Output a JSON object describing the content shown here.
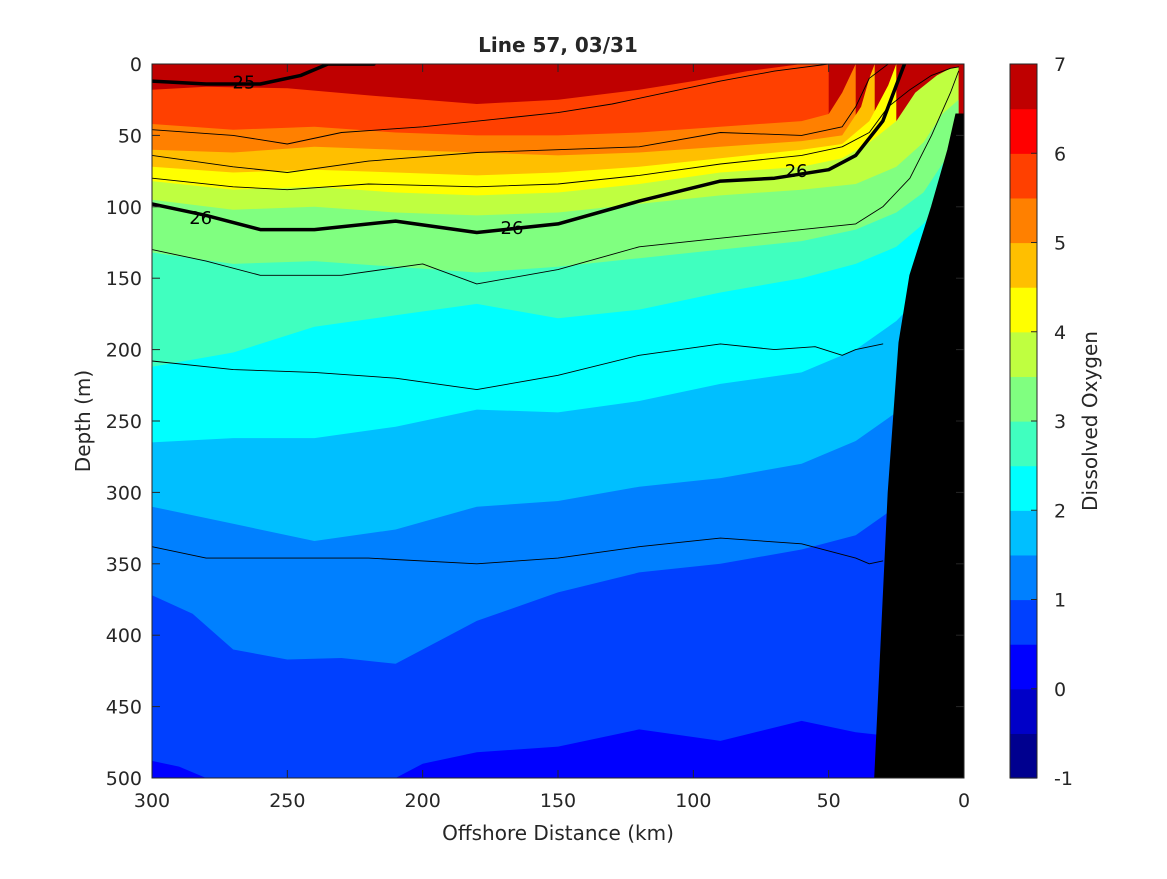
{
  "chart_data": {
    "type": "contour",
    "title": "Line 57, 03/31",
    "xlabel": "Offshore Distance (km)",
    "ylabel": "Depth (m)",
    "xlim": [
      300,
      0
    ],
    "ylim": [
      500,
      0
    ],
    "x_reversed": true,
    "y_reversed": true,
    "xticks": [
      300,
      250,
      200,
      150,
      100,
      50,
      0
    ],
    "yticks": [
      0,
      50,
      100,
      150,
      200,
      250,
      300,
      350,
      400,
      450,
      500
    ],
    "colorbar": {
      "label": "Dissolved Oxygen",
      "range": [
        -1,
        7
      ],
      "ticks": [
        -1,
        0,
        1,
        2,
        3,
        4,
        5,
        6,
        7
      ],
      "levels": [
        -1,
        -0.5,
        0,
        0.5,
        1,
        1.5,
        2,
        2.5,
        3,
        3.5,
        4,
        4.5,
        5,
        5.5,
        6,
        6.5,
        7
      ],
      "colors": [
        "#00008f",
        "#0000c8",
        "#0000ff",
        "#0040ff",
        "#0080ff",
        "#00bfff",
        "#00ffff",
        "#40ffbf",
        "#80ff80",
        "#bfff40",
        "#ffff00",
        "#ffbf00",
        "#ff8000",
        "#ff4000",
        "#ff0000",
        "#bf0000"
      ]
    },
    "oxygen_boundaries": [
      {
        "level": 6.0,
        "x": [
          300,
          280,
          250,
          220,
          180,
          150,
          120,
          100,
          80,
          60,
          50
        ],
        "y": [
          18,
          16,
          17,
          22,
          28,
          25,
          18,
          12,
          5,
          0,
          0
        ]
      },
      {
        "level": 5.5,
        "x": [
          300,
          270,
          240,
          210,
          180,
          150,
          120,
          90,
          60,
          50,
          45,
          40
        ],
        "y": [
          42,
          46,
          44,
          48,
          50,
          50,
          48,
          44,
          40,
          35,
          20,
          0
        ]
      },
      {
        "level": 5.0,
        "x": [
          300,
          270,
          240,
          210,
          180,
          150,
          120,
          90,
          60,
          45,
          38,
          35,
          33
        ],
        "y": [
          60,
          62,
          58,
          60,
          62,
          64,
          62,
          58,
          54,
          50,
          30,
          10,
          0
        ]
      },
      {
        "level": 4.5,
        "x": [
          300,
          270,
          240,
          210,
          180,
          150,
          120,
          90,
          60,
          45,
          35,
          28,
          25
        ],
        "y": [
          72,
          76,
          74,
          76,
          78,
          76,
          72,
          66,
          60,
          56,
          40,
          15,
          0
        ]
      },
      {
        "level": 4.0,
        "x": [
          300,
          270,
          240,
          210,
          180,
          150,
          120,
          90,
          60,
          45,
          35,
          25,
          18,
          10,
          5,
          2
        ],
        "y": [
          82,
          88,
          86,
          90,
          92,
          90,
          84,
          76,
          72,
          66,
          55,
          40,
          20,
          8,
          3,
          2
        ]
      },
      {
        "level": 3.5,
        "x": [
          300,
          270,
          240,
          210,
          180,
          150,
          120,
          90,
          60,
          40,
          25,
          15,
          8,
          2
        ],
        "y": [
          95,
          102,
          100,
          104,
          106,
          104,
          98,
          92,
          88,
          84,
          72,
          55,
          35,
          25
        ]
      },
      {
        "level": 3.0,
        "x": [
          300,
          270,
          240,
          210,
          180,
          150,
          120,
          90,
          60,
          40,
          25,
          15,
          8,
          2
        ],
        "y": [
          132,
          140,
          138,
          142,
          146,
          142,
          136,
          130,
          124,
          116,
          104,
          90,
          70,
          55
        ]
      },
      {
        "level": 2.5,
        "x": [
          300,
          270,
          240,
          210,
          180,
          150,
          120,
          90,
          60,
          40,
          25,
          15,
          8,
          2
        ],
        "y": [
          212,
          202,
          184,
          176,
          168,
          178,
          172,
          160,
          150,
          140,
          128,
          112,
          95,
          80
        ]
      },
      {
        "level": 2.0,
        "x": [
          300,
          270,
          240,
          210,
          180,
          150,
          120,
          90,
          60,
          40,
          25,
          15,
          8,
          2
        ],
        "y": [
          265,
          262,
          262,
          254,
          242,
          244,
          236,
          224,
          216,
          200,
          180,
          160,
          140,
          120
        ]
      },
      {
        "level": 1.5,
        "x": [
          300,
          270,
          240,
          210,
          180,
          150,
          120,
          90,
          60,
          40,
          25,
          15,
          8,
          2
        ],
        "y": [
          310,
          322,
          334,
          326,
          310,
          306,
          296,
          290,
          280,
          264,
          244,
          220,
          190,
          160
        ]
      },
      {
        "level": 1.0,
        "x": [
          300,
          285,
          270,
          250,
          230,
          210,
          180,
          150,
          120,
          90,
          60,
          40,
          25,
          15,
          8,
          2
        ],
        "y": [
          372,
          385,
          410,
          417,
          416,
          420,
          390,
          370,
          356,
          350,
          340,
          330,
          310,
          290,
          260,
          230
        ]
      },
      {
        "level": 0.5,
        "x": [
          300,
          290,
          280,
          210,
          200,
          180,
          150,
          120,
          90,
          60,
          40,
          30,
          20,
          10,
          5,
          2
        ],
        "y": [
          488,
          492,
          500,
          500,
          490,
          482,
          478,
          466,
          474,
          460,
          468,
          470,
          460,
          430,
          400,
          370
        ]
      }
    ],
    "sigma_contours": [
      {
        "label": "",
        "bold": false,
        "x": [
          300,
          270,
          250,
          230,
          200,
          170,
          150,
          130,
          110,
          90,
          70,
          50,
          35,
          28
        ],
        "y": [
          46,
          50,
          56,
          48,
          44,
          38,
          34,
          28,
          20,
          12,
          5,
          0,
          0,
          0
        ]
      },
      {
        "label": "",
        "bold": false,
        "x": [
          300,
          270,
          250,
          220,
          180,
          150,
          120,
          90,
          60,
          45,
          40,
          35,
          28
        ],
        "y": [
          64,
          72,
          76,
          68,
          62,
          60,
          58,
          48,
          50,
          44,
          30,
          10,
          0
        ]
      },
      {
        "label": "",
        "bold": false,
        "x": [
          300,
          270,
          250,
          220,
          180,
          150,
          120,
          90,
          60,
          45,
          35,
          28,
          20,
          12,
          5,
          2
        ],
        "y": [
          80,
          86,
          88,
          84,
          86,
          84,
          78,
          70,
          64,
          58,
          48,
          30,
          18,
          8,
          3,
          2
        ]
      },
      {
        "label": "26",
        "bold": true,
        "x": [
          300,
          280,
          260,
          240,
          210,
          180,
          150,
          120,
          90,
          70,
          50,
          40,
          30,
          25,
          22
        ],
        "y": [
          98,
          106,
          116,
          116,
          110,
          118,
          112,
          96,
          82,
          80,
          74,
          64,
          40,
          15,
          0
        ]
      },
      {
        "label": "",
        "bold": false,
        "x": [
          300,
          280,
          260,
          230,
          200,
          180,
          150,
          120,
          90,
          60,
          40,
          30,
          20,
          12,
          5,
          2
        ],
        "y": [
          130,
          138,
          148,
          148,
          140,
          154,
          144,
          128,
          122,
          116,
          112,
          100,
          80,
          50,
          20,
          5
        ]
      },
      {
        "label": "",
        "bold": false,
        "x": [
          300,
          270,
          240,
          210,
          180,
          150,
          120,
          90,
          70,
          55,
          45,
          40,
          30
        ],
        "y": [
          208,
          214,
          216,
          220,
          228,
          218,
          204,
          196,
          200,
          198,
          204,
          200,
          196
        ]
      },
      {
        "label": "",
        "bold": false,
        "x": [
          300,
          280,
          250,
          220,
          180,
          150,
          120,
          90,
          60,
          40,
          35,
          30
        ],
        "y": [
          338,
          346,
          346,
          346,
          350,
          346,
          338,
          332,
          336,
          346,
          350,
          348
        ]
      },
      {
        "label": "25",
        "bold": true,
        "x": [
          300,
          280,
          260,
          245,
          235,
          225,
          218
        ],
        "y": [
          12,
          14,
          14,
          8,
          0,
          0,
          0
        ]
      }
    ],
    "bathymetry": {
      "x": [
        33,
        28,
        24,
        20,
        12,
        6,
        3,
        0
      ],
      "y": [
        500,
        300,
        195,
        148,
        100,
        60,
        35,
        35
      ]
    },
    "contour_labels": [
      {
        "text": "25",
        "x": 266,
        "y": 13
      },
      {
        "text": "26",
        "x": 282,
        "y": 108
      },
      {
        "text": "26",
        "x": 167,
        "y": 115
      },
      {
        "text": "26",
        "x": 62,
        "y": 75
      }
    ]
  }
}
